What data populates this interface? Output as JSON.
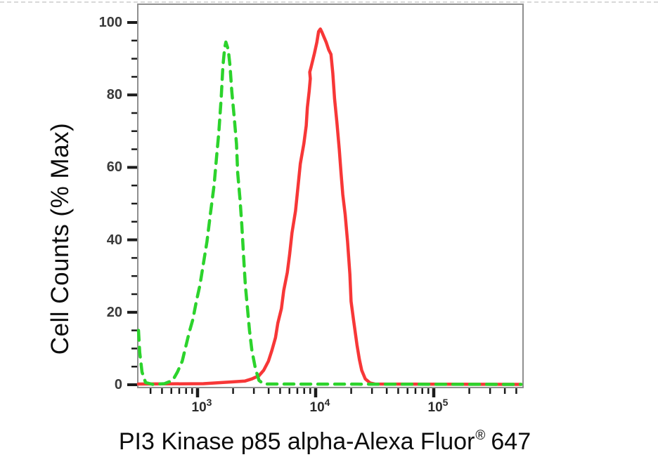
{
  "figure": {
    "ylabel": "Cell Counts (% Max)",
    "xlabel_main": "PI3 Kinase p85 alpha-Alexa Fluor",
    "xlabel_reg": "®",
    "xlabel_suffix": "647"
  },
  "chart_data": {
    "type": "line",
    "title": "",
    "xlabel": "PI3 Kinase p85 alpha-Alexa Fluor® 647",
    "ylabel": "Cell Counts (% Max)",
    "grid": false,
    "legend": "none",
    "x_axis": {
      "scale": "log10",
      "log_min": 2.5,
      "log_max": 5.76,
      "major_tick_labels": [
        "10^3",
        "10^4",
        "10^5"
      ],
      "major_tick_exponents": [
        3,
        4,
        5
      ],
      "minor_tick_multiples": [
        2,
        3,
        4,
        5,
        6,
        7,
        8,
        9
      ],
      "tick_label_base": "10"
    },
    "y_axis": {
      "min": 0,
      "max": 105,
      "major_ticks": [
        0,
        20,
        40,
        60,
        80,
        100
      ],
      "minor_tick_step": 5
    },
    "colors": {
      "frame": "#8f8f8f",
      "tick": "#1b1b1b",
      "tick_label": "#3a3a3a",
      "title_text": "#0d0d0d",
      "green_series": "#2cd32c",
      "red_series": "#f73737"
    },
    "series": [
      {
        "name": "red-solid-histogram",
        "color": "#f73737",
        "line_style": "solid",
        "stroke_width": 4.5,
        "peak": {
          "x_log": 4.04,
          "y_pct": 98.2
        },
        "points": [
          [
            2.5,
            0.2
          ],
          [
            3.05,
            0.3
          ],
          [
            3.3,
            0.8
          ],
          [
            3.4,
            1.0
          ],
          [
            3.46,
            1.6
          ],
          [
            3.52,
            2.5
          ],
          [
            3.56,
            4.0
          ],
          [
            3.6,
            6.5
          ],
          [
            3.63,
            9.5
          ],
          [
            3.66,
            13.0
          ],
          [
            3.68,
            17.0
          ],
          [
            3.71,
            21.0
          ],
          [
            3.73,
            26.0
          ],
          [
            3.76,
            31.0
          ],
          [
            3.78,
            36.0
          ],
          [
            3.8,
            42.0
          ],
          [
            3.83,
            48.0
          ],
          [
            3.85,
            54.5
          ],
          [
            3.87,
            61.0
          ],
          [
            3.9,
            66.5
          ],
          [
            3.92,
            71.5
          ],
          [
            3.93,
            76.5
          ],
          [
            3.945,
            81.0
          ],
          [
            3.955,
            84.5
          ],
          [
            3.95,
            86.3
          ],
          [
            3.96,
            87.5
          ],
          [
            3.975,
            89.5
          ],
          [
            3.99,
            91.5
          ],
          [
            4.01,
            94.5
          ],
          [
            4.025,
            97.5
          ],
          [
            4.04,
            98.2
          ],
          [
            4.055,
            97.2
          ],
          [
            4.07,
            96.0
          ],
          [
            4.09,
            94.5
          ],
          [
            4.11,
            92.5
          ],
          [
            4.13,
            91.2
          ],
          [
            4.145,
            86.0
          ],
          [
            4.16,
            79.0
          ],
          [
            4.18,
            72.5
          ],
          [
            4.2,
            65.0
          ],
          [
            4.215,
            58.5
          ],
          [
            4.23,
            52.5
          ],
          [
            4.25,
            47.0
          ],
          [
            4.27,
            39.5
          ],
          [
            4.29,
            30.5
          ],
          [
            4.3,
            23.0
          ],
          [
            4.32,
            18.0
          ],
          [
            4.35,
            11.0
          ],
          [
            4.37,
            7.0
          ],
          [
            4.39,
            4.0
          ],
          [
            4.42,
            1.6
          ],
          [
            4.46,
            0.5
          ],
          [
            4.5,
            0.2
          ],
          [
            5.74,
            0.1
          ]
        ]
      },
      {
        "name": "green-dashed-histogram",
        "color": "#2cd32c",
        "line_style": "dashed",
        "dash_pattern": [
          14,
          10
        ],
        "stroke_width": 4.5,
        "peak": {
          "x_log": 3.24,
          "y_pct": 94.6
        },
        "points": [
          [
            2.5,
            15.0
          ],
          [
            2.51,
            9.0
          ],
          [
            2.53,
            3.5
          ],
          [
            2.56,
            0.6
          ],
          [
            2.62,
            0.1
          ],
          [
            2.72,
            0.3
          ],
          [
            2.79,
            1.2
          ],
          [
            2.83,
            3.5
          ],
          [
            2.87,
            6.5
          ],
          [
            2.9,
            10.5
          ],
          [
            2.93,
            14.5
          ],
          [
            2.96,
            18.0
          ],
          [
            2.99,
            23.0
          ],
          [
            3.02,
            27.5
          ],
          [
            3.05,
            33.5
          ],
          [
            3.08,
            39.5
          ],
          [
            3.11,
            47.5
          ],
          [
            3.14,
            55.0
          ],
          [
            3.16,
            62.5
          ],
          [
            3.18,
            69.5
          ],
          [
            3.2,
            79.0
          ],
          [
            3.215,
            88.0
          ],
          [
            3.23,
            93.0
          ],
          [
            3.24,
            94.6
          ],
          [
            3.26,
            92.5
          ],
          [
            3.275,
            88.0
          ],
          [
            3.29,
            81.0
          ],
          [
            3.31,
            74.0
          ],
          [
            3.33,
            66.5
          ],
          [
            3.34,
            58.5
          ],
          [
            3.36,
            51.0
          ],
          [
            3.375,
            44.0
          ],
          [
            3.39,
            35.5
          ],
          [
            3.405,
            27.5
          ],
          [
            3.42,
            22.0
          ],
          [
            3.44,
            15.0
          ],
          [
            3.46,
            9.5
          ],
          [
            3.49,
            4.5
          ],
          [
            3.52,
            1.2
          ],
          [
            3.56,
            0.2
          ],
          [
            5.74,
            0.1
          ]
        ]
      }
    ]
  }
}
